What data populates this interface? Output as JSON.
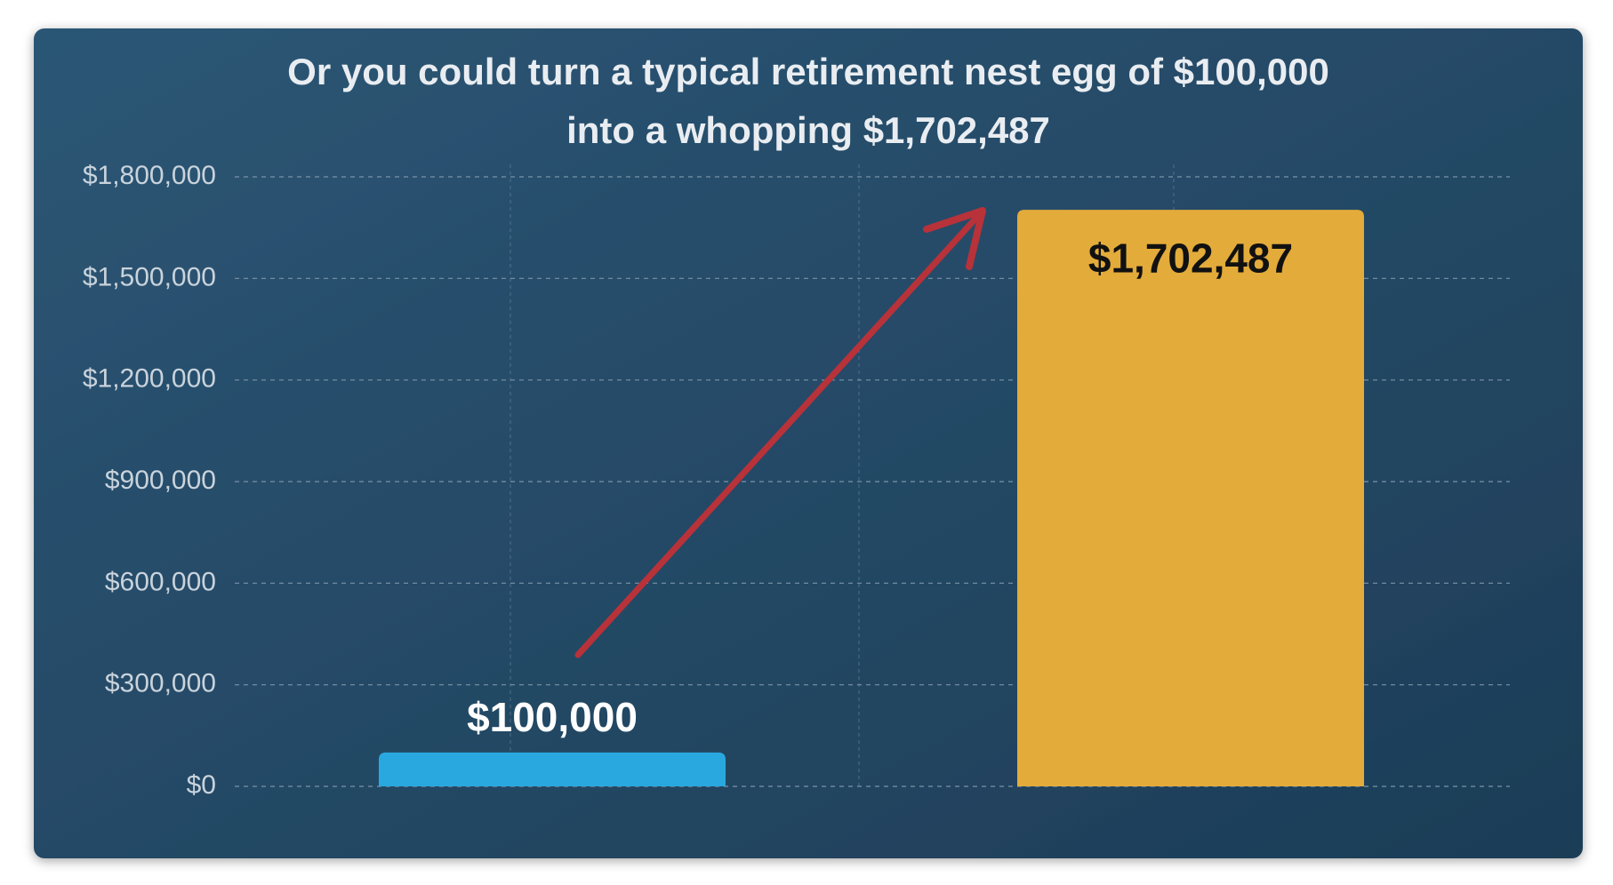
{
  "chart_data": {
    "type": "bar",
    "title": [
      "Or you could turn a typical retirement nest egg of $100,000",
      "into a whopping $1,702,487"
    ],
    "categories": [
      null,
      null
    ],
    "values": [
      100000,
      1702487
    ],
    "value_labels": [
      "$100,000",
      "$1,702,487"
    ],
    "colors": [
      "#29a8e0",
      "#e3ab3a"
    ],
    "value_label_colors": [
      "#ffffff",
      "#111111"
    ],
    "ylim": [
      0,
      1800000
    ],
    "yticks": [
      {
        "value": 0,
        "label": "$0"
      },
      {
        "value": 300000,
        "label": "$300,000"
      },
      {
        "value": 600000,
        "label": "$600,000"
      },
      {
        "value": 900000,
        "label": "$900,000"
      },
      {
        "value": 1200000,
        "label": "$1,200,000"
      },
      {
        "value": 1500000,
        "label": "$1,500,000"
      },
      {
        "value": 1800000,
        "label": "$1,800,000"
      }
    ],
    "grid": true
  }
}
